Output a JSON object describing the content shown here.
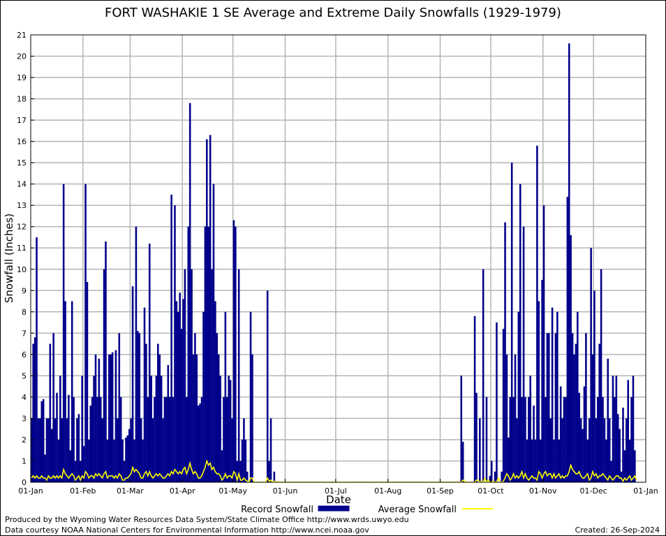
{
  "footer": {
    "produced_by": "Produced by the Wyoming Water Resources Data System/State Climate Office http://www.wrds.uwyo.edu",
    "courtesy": "Data courtesy NOAA National Centers for Environmental Information http://www.ncei.noaa.gov",
    "created": "Created:  26-Sep-2024"
  },
  "colors": {
    "record": "#00008b",
    "average": "#ffff00",
    "grid": "#b4b4b4"
  },
  "chart_data": {
    "type": "bar",
    "title": "FORT WASHAKIE 1 SE Average and Extreme Daily Snowfalls (1929-1979)",
    "xlabel": "Date",
    "ylabel": "Snowfall (Inches)",
    "ylim": [
      0,
      21
    ],
    "yticks": [
      "0",
      "1",
      "2",
      "3",
      "4",
      "5",
      "6",
      "7",
      "8",
      "9",
      "10",
      "11",
      "12",
      "13",
      "14",
      "15",
      "16",
      "17",
      "18",
      "19",
      "20",
      "21"
    ],
    "xticks": [
      "01-Jan",
      "01-Feb",
      "01-Mar",
      "01-Apr",
      "01-May",
      "01-Jun",
      "01-Jul",
      "01-Aug",
      "01-Sep",
      "01-Oct",
      "01-Nov",
      "01-Dec",
      "01-Jan"
    ],
    "xtick_days": [
      0,
      31,
      59,
      90,
      120,
      151,
      181,
      212,
      243,
      273,
      304,
      334,
      365
    ],
    "grid": true,
    "legend_position": "bottom",
    "series": [
      {
        "name": "Record Snowfall",
        "kind": "bar",
        "values": [
          3.0,
          6.5,
          6.8,
          11.5,
          3.0,
          3.0,
          3.8,
          3.9,
          1.3,
          3.0,
          3.0,
          6.5,
          2.5,
          7.0,
          3.0,
          4.2,
          2.0,
          5.0,
          3.0,
          14.0,
          8.5,
          3.0,
          4.1,
          1.5,
          8.5,
          4.0,
          1.0,
          3.0,
          3.2,
          1.0,
          5.0,
          1.7,
          14.0,
          9.4,
          2.0,
          3.6,
          4.0,
          5.0,
          6.0,
          4.0,
          5.8,
          4.0,
          3.0,
          10.0,
          11.3,
          2.0,
          6.0,
          6.0,
          6.1,
          2.0,
          6.2,
          3.0,
          7.0,
          4.0,
          2.0,
          1.0,
          2.1,
          2.2,
          2.5,
          3.0,
          9.2,
          2.0,
          12.0,
          7.1,
          7.0,
          3.0,
          2.0,
          8.2,
          6.5,
          4.0,
          11.2,
          5.0,
          3.0,
          4.0,
          5.0,
          6.5,
          6.0,
          5.0,
          3.0,
          4.0,
          4.0,
          5.5,
          4.0,
          13.5,
          4.0,
          13.0,
          8.5,
          8.0,
          8.9,
          7.2,
          8.6,
          10.0,
          4.0,
          12.0,
          17.8,
          10.0,
          6.0,
          7.0,
          6.0,
          3.6,
          3.7,
          4.0,
          8.0,
          12.0,
          16.1,
          12.0,
          16.3,
          10.0,
          14.0,
          8.5,
          7.0,
          6.0,
          5.0,
          1.5,
          4.0,
          8.0,
          4.0,
          5.0,
          4.8,
          3.0,
          12.3,
          12.0,
          1.0,
          10.0,
          1.0,
          2.0,
          3.0,
          2.0,
          0.5,
          0,
          8.0,
          6.0,
          0,
          0,
          0,
          0,
          0,
          0,
          0,
          0,
          9.0,
          1.0,
          3.0,
          0,
          0.5,
          0,
          0,
          0,
          0,
          0,
          0,
          0,
          0,
          0,
          0,
          0,
          0,
          0,
          0,
          0,
          0,
          0,
          0,
          0,
          0,
          0,
          0,
          0,
          0,
          0,
          0,
          0,
          0,
          0,
          0,
          0,
          0,
          0,
          0,
          0,
          0,
          0,
          0,
          0,
          0,
          0,
          0,
          0,
          0,
          0,
          0,
          0,
          0,
          0,
          0,
          0,
          0,
          0,
          0,
          0,
          0,
          0,
          0,
          0,
          0,
          0,
          0,
          0,
          0,
          0,
          0,
          0,
          0,
          0,
          0,
          0,
          0,
          0,
          0,
          0,
          0,
          0,
          0,
          0,
          0,
          0,
          0,
          0,
          0,
          0,
          0,
          0,
          0,
          0,
          0,
          0,
          0,
          0,
          0,
          0,
          0,
          0,
          0,
          0,
          0,
          0,
          0,
          0,
          0,
          0,
          0,
          0,
          0,
          0,
          0,
          5.0,
          1.9,
          0,
          0,
          0,
          0,
          0,
          0,
          7.8,
          4.2,
          0,
          3.0,
          0,
          10.0,
          0,
          4.0,
          0,
          0.3,
          1.0,
          0,
          0.5,
          7.5,
          0,
          0,
          0.5,
          7.2,
          12.2,
          6.0,
          2.1,
          4.0,
          15.0,
          4.0,
          6.0,
          3.0,
          8.0,
          14.0,
          4.0,
          12.0,
          4.0,
          2.0,
          4.0,
          5.0,
          2.0,
          3.6,
          2.0,
          15.8,
          8.5,
          2.0,
          9.5,
          13.0,
          4.0,
          7.0,
          7.0,
          3.0,
          8.2,
          2.0,
          7.0,
          8.0,
          2.0,
          4.5,
          3.0,
          4.0,
          4.0,
          13.4,
          20.6,
          11.6,
          7.0,
          6.0,
          6.5,
          8.0,
          4.2,
          3.0,
          2.5,
          4.5,
          7.0,
          2.0,
          3.0,
          11.0,
          6.0,
          9.0,
          3.0,
          4.0,
          6.5,
          10.0,
          4.0,
          3.0,
          2.0,
          5.8,
          3.0,
          1.0,
          5.0,
          4.0,
          5.0,
          3.2,
          2.5,
          0.5,
          3.5,
          1.5,
          3.0,
          4.8,
          2.0,
          4.0,
          5.0,
          1.5
        ]
      },
      {
        "name": "Average Snowfall",
        "kind": "line",
        "values": [
          0.2,
          0.3,
          0.2,
          0.3,
          0.2,
          0.2,
          0.3,
          0.2,
          0.2,
          0.1,
          0.3,
          0.2,
          0.2,
          0.3,
          0.2,
          0.3,
          0.2,
          0.3,
          0.2,
          0.6,
          0.4,
          0.3,
          0.2,
          0.3,
          0.4,
          0.3,
          0.1,
          0.2,
          0.3,
          0.1,
          0.3,
          0.2,
          0.5,
          0.4,
          0.2,
          0.3,
          0.3,
          0.2,
          0.4,
          0.3,
          0.4,
          0.3,
          0.2,
          0.4,
          0.5,
          0.2,
          0.3,
          0.3,
          0.3,
          0.2,
          0.3,
          0.2,
          0.4,
          0.3,
          0.1,
          0.1,
          0.2,
          0.2,
          0.3,
          0.4,
          0.7,
          0.5,
          0.6,
          0.5,
          0.4,
          0.2,
          0.2,
          0.4,
          0.5,
          0.3,
          0.5,
          0.3,
          0.2,
          0.3,
          0.4,
          0.3,
          0.4,
          0.3,
          0.2,
          0.2,
          0.3,
          0.4,
          0.3,
          0.5,
          0.4,
          0.6,
          0.5,
          0.4,
          0.5,
          0.4,
          0.6,
          0.7,
          0.4,
          0.6,
          0.9,
          0.6,
          0.4,
          0.5,
          0.4,
          0.2,
          0.2,
          0.3,
          0.5,
          0.7,
          1.0,
          0.8,
          0.9,
          0.6,
          0.7,
          0.5,
          0.4,
          0.4,
          0.3,
          0.1,
          0.2,
          0.4,
          0.2,
          0.3,
          0.3,
          0.2,
          0.5,
          0.4,
          0.1,
          0.4,
          0.1,
          0.1,
          0.2,
          0.1,
          0.05,
          0,
          0.2,
          0.2,
          0,
          0,
          0,
          0,
          0,
          0,
          0,
          0,
          0.2,
          0.05,
          0.1,
          0,
          0.05,
          0,
          0,
          0,
          0,
          0,
          0,
          0,
          0,
          0,
          0,
          0,
          0,
          0,
          0,
          0,
          0,
          0,
          0,
          0,
          0,
          0,
          0,
          0,
          0,
          0,
          0,
          0,
          0,
          0,
          0,
          0,
          0,
          0,
          0,
          0,
          0,
          0,
          0,
          0,
          0,
          0,
          0,
          0,
          0,
          0,
          0,
          0,
          0,
          0,
          0,
          0,
          0,
          0,
          0,
          0,
          0,
          0,
          0,
          0,
          0,
          0,
          0,
          0,
          0,
          0,
          0,
          0,
          0,
          0,
          0,
          0,
          0,
          0,
          0,
          0,
          0,
          0,
          0,
          0,
          0,
          0,
          0,
          0,
          0,
          0,
          0,
          0,
          0,
          0,
          0,
          0,
          0,
          0,
          0,
          0,
          0,
          0,
          0,
          0,
          0,
          0,
          0,
          0,
          0,
          0,
          0,
          0,
          0,
          0,
          0,
          0,
          0.1,
          0.05,
          0,
          0,
          0,
          0,
          0,
          0,
          0.1,
          0.1,
          0,
          0.05,
          0,
          0.2,
          0,
          0.1,
          0,
          0.02,
          0.05,
          0,
          0.02,
          0.2,
          0,
          0,
          0.05,
          0.2,
          0.4,
          0.3,
          0.1,
          0.2,
          0.4,
          0.2,
          0.3,
          0.2,
          0.3,
          0.5,
          0.2,
          0.4,
          0.2,
          0.1,
          0.2,
          0.3,
          0.2,
          0.2,
          0.1,
          0.5,
          0.4,
          0.2,
          0.4,
          0.5,
          0.3,
          0.4,
          0.4,
          0.2,
          0.4,
          0.2,
          0.3,
          0.4,
          0.2,
          0.3,
          0.2,
          0.3,
          0.3,
          0.5,
          0.8,
          0.6,
          0.5,
          0.4,
          0.4,
          0.5,
          0.3,
          0.2,
          0.2,
          0.3,
          0.4,
          0.1,
          0.2,
          0.5,
          0.3,
          0.4,
          0.2,
          0.3,
          0.3,
          0.4,
          0.3,
          0.2,
          0.1,
          0.3,
          0.2,
          0.1,
          0.2,
          0.3,
          0.3,
          0.2,
          0.2,
          0.05,
          0.2,
          0.1,
          0.2,
          0.3,
          0.1,
          0.2,
          0.3,
          0.1
        ]
      }
    ]
  }
}
